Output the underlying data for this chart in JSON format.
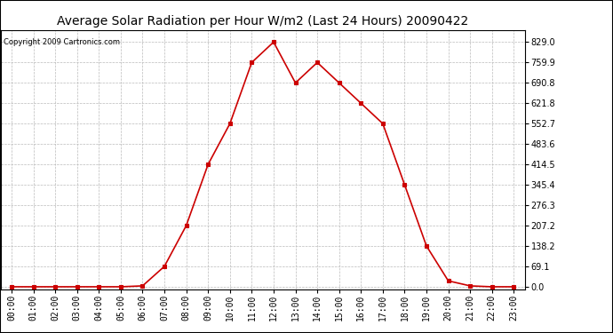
{
  "title": "Average Solar Radiation per Hour W/m2 (Last 24 Hours) 20090422",
  "copyright": "Copyright 2009 Cartronics.com",
  "x_labels": [
    "00:00",
    "01:00",
    "02:00",
    "03:00",
    "04:00",
    "05:00",
    "06:00",
    "07:00",
    "08:00",
    "09:00",
    "10:00",
    "11:00",
    "12:00",
    "13:00",
    "14:00",
    "15:00",
    "16:00",
    "17:00",
    "18:00",
    "19:00",
    "20:00",
    "21:00",
    "22:00",
    "23:00"
  ],
  "y_values": [
    0.0,
    0.0,
    0.0,
    0.0,
    0.0,
    0.0,
    3.0,
    69.1,
    207.2,
    414.5,
    552.7,
    759.9,
    829.0,
    690.8,
    759.9,
    690.8,
    621.8,
    552.7,
    345.4,
    138.2,
    20.0,
    3.0,
    0.0,
    0.0
  ],
  "y_ticks": [
    0.0,
    69.1,
    138.2,
    207.2,
    276.3,
    345.4,
    414.5,
    483.6,
    552.7,
    621.8,
    690.8,
    759.9,
    829.0
  ],
  "line_color": "#cc0000",
  "marker": "s",
  "marker_color": "#cc0000",
  "marker_size": 2.5,
  "grid_color": "#bbbbbb",
  "bg_color": "#ffffff",
  "title_fontsize": 10,
  "copyright_fontsize": 6,
  "tick_fontsize": 7,
  "ylim_min": -10,
  "ylim_max": 870,
  "border_color": "#000000"
}
